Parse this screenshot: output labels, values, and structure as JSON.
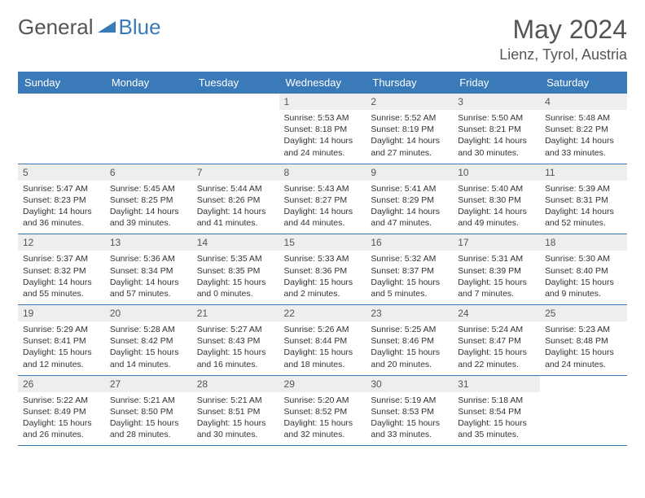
{
  "brand": {
    "word1": "General",
    "word2": "Blue"
  },
  "title": "May 2024",
  "location": "Lienz, Tyrol, Austria",
  "colors": {
    "header_bg": "#3a7ab8",
    "header_text": "#ffffff",
    "daynum_bg": "#eeeeee",
    "body_text": "#333333",
    "title_text": "#555555",
    "row_border": "#3a7ab8",
    "page_bg": "#ffffff"
  },
  "weekdays": [
    "Sunday",
    "Monday",
    "Tuesday",
    "Wednesday",
    "Thursday",
    "Friday",
    "Saturday"
  ],
  "weeks": [
    [
      {
        "n": "",
        "sr": "",
        "ss": "",
        "dl": ""
      },
      {
        "n": "",
        "sr": "",
        "ss": "",
        "dl": ""
      },
      {
        "n": "",
        "sr": "",
        "ss": "",
        "dl": ""
      },
      {
        "n": "1",
        "sr": "Sunrise: 5:53 AM",
        "ss": "Sunset: 8:18 PM",
        "dl": "Daylight: 14 hours and 24 minutes."
      },
      {
        "n": "2",
        "sr": "Sunrise: 5:52 AM",
        "ss": "Sunset: 8:19 PM",
        "dl": "Daylight: 14 hours and 27 minutes."
      },
      {
        "n": "3",
        "sr": "Sunrise: 5:50 AM",
        "ss": "Sunset: 8:21 PM",
        "dl": "Daylight: 14 hours and 30 minutes."
      },
      {
        "n": "4",
        "sr": "Sunrise: 5:48 AM",
        "ss": "Sunset: 8:22 PM",
        "dl": "Daylight: 14 hours and 33 minutes."
      }
    ],
    [
      {
        "n": "5",
        "sr": "Sunrise: 5:47 AM",
        "ss": "Sunset: 8:23 PM",
        "dl": "Daylight: 14 hours and 36 minutes."
      },
      {
        "n": "6",
        "sr": "Sunrise: 5:45 AM",
        "ss": "Sunset: 8:25 PM",
        "dl": "Daylight: 14 hours and 39 minutes."
      },
      {
        "n": "7",
        "sr": "Sunrise: 5:44 AM",
        "ss": "Sunset: 8:26 PM",
        "dl": "Daylight: 14 hours and 41 minutes."
      },
      {
        "n": "8",
        "sr": "Sunrise: 5:43 AM",
        "ss": "Sunset: 8:27 PM",
        "dl": "Daylight: 14 hours and 44 minutes."
      },
      {
        "n": "9",
        "sr": "Sunrise: 5:41 AM",
        "ss": "Sunset: 8:29 PM",
        "dl": "Daylight: 14 hours and 47 minutes."
      },
      {
        "n": "10",
        "sr": "Sunrise: 5:40 AM",
        "ss": "Sunset: 8:30 PM",
        "dl": "Daylight: 14 hours and 49 minutes."
      },
      {
        "n": "11",
        "sr": "Sunrise: 5:39 AM",
        "ss": "Sunset: 8:31 PM",
        "dl": "Daylight: 14 hours and 52 minutes."
      }
    ],
    [
      {
        "n": "12",
        "sr": "Sunrise: 5:37 AM",
        "ss": "Sunset: 8:32 PM",
        "dl": "Daylight: 14 hours and 55 minutes."
      },
      {
        "n": "13",
        "sr": "Sunrise: 5:36 AM",
        "ss": "Sunset: 8:34 PM",
        "dl": "Daylight: 14 hours and 57 minutes."
      },
      {
        "n": "14",
        "sr": "Sunrise: 5:35 AM",
        "ss": "Sunset: 8:35 PM",
        "dl": "Daylight: 15 hours and 0 minutes."
      },
      {
        "n": "15",
        "sr": "Sunrise: 5:33 AM",
        "ss": "Sunset: 8:36 PM",
        "dl": "Daylight: 15 hours and 2 minutes."
      },
      {
        "n": "16",
        "sr": "Sunrise: 5:32 AM",
        "ss": "Sunset: 8:37 PM",
        "dl": "Daylight: 15 hours and 5 minutes."
      },
      {
        "n": "17",
        "sr": "Sunrise: 5:31 AM",
        "ss": "Sunset: 8:39 PM",
        "dl": "Daylight: 15 hours and 7 minutes."
      },
      {
        "n": "18",
        "sr": "Sunrise: 5:30 AM",
        "ss": "Sunset: 8:40 PM",
        "dl": "Daylight: 15 hours and 9 minutes."
      }
    ],
    [
      {
        "n": "19",
        "sr": "Sunrise: 5:29 AM",
        "ss": "Sunset: 8:41 PM",
        "dl": "Daylight: 15 hours and 12 minutes."
      },
      {
        "n": "20",
        "sr": "Sunrise: 5:28 AM",
        "ss": "Sunset: 8:42 PM",
        "dl": "Daylight: 15 hours and 14 minutes."
      },
      {
        "n": "21",
        "sr": "Sunrise: 5:27 AM",
        "ss": "Sunset: 8:43 PM",
        "dl": "Daylight: 15 hours and 16 minutes."
      },
      {
        "n": "22",
        "sr": "Sunrise: 5:26 AM",
        "ss": "Sunset: 8:44 PM",
        "dl": "Daylight: 15 hours and 18 minutes."
      },
      {
        "n": "23",
        "sr": "Sunrise: 5:25 AM",
        "ss": "Sunset: 8:46 PM",
        "dl": "Daylight: 15 hours and 20 minutes."
      },
      {
        "n": "24",
        "sr": "Sunrise: 5:24 AM",
        "ss": "Sunset: 8:47 PM",
        "dl": "Daylight: 15 hours and 22 minutes."
      },
      {
        "n": "25",
        "sr": "Sunrise: 5:23 AM",
        "ss": "Sunset: 8:48 PM",
        "dl": "Daylight: 15 hours and 24 minutes."
      }
    ],
    [
      {
        "n": "26",
        "sr": "Sunrise: 5:22 AM",
        "ss": "Sunset: 8:49 PM",
        "dl": "Daylight: 15 hours and 26 minutes."
      },
      {
        "n": "27",
        "sr": "Sunrise: 5:21 AM",
        "ss": "Sunset: 8:50 PM",
        "dl": "Daylight: 15 hours and 28 minutes."
      },
      {
        "n": "28",
        "sr": "Sunrise: 5:21 AM",
        "ss": "Sunset: 8:51 PM",
        "dl": "Daylight: 15 hours and 30 minutes."
      },
      {
        "n": "29",
        "sr": "Sunrise: 5:20 AM",
        "ss": "Sunset: 8:52 PM",
        "dl": "Daylight: 15 hours and 32 minutes."
      },
      {
        "n": "30",
        "sr": "Sunrise: 5:19 AM",
        "ss": "Sunset: 8:53 PM",
        "dl": "Daylight: 15 hours and 33 minutes."
      },
      {
        "n": "31",
        "sr": "Sunrise: 5:18 AM",
        "ss": "Sunset: 8:54 PM",
        "dl": "Daylight: 15 hours and 35 minutes."
      },
      {
        "n": "",
        "sr": "",
        "ss": "",
        "dl": ""
      }
    ]
  ]
}
